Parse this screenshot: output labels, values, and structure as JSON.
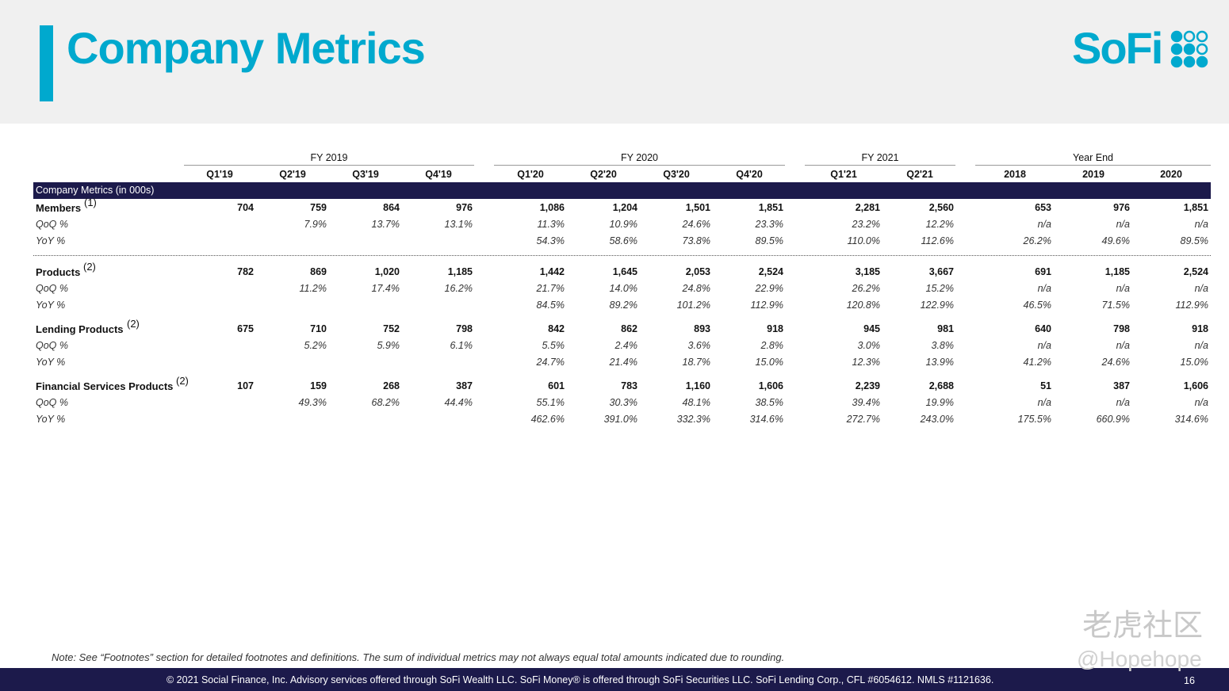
{
  "header": {
    "title": "Company Metrics",
    "logo": "SoFi"
  },
  "table": {
    "groups": [
      "FY 2019",
      "FY 2020",
      "FY 2021",
      "Year End"
    ],
    "columns": [
      "Q1'19",
      "Q2'19",
      "Q3'19",
      "Q4'19",
      "Q1'20",
      "Q2'20",
      "Q3'20",
      "Q4'20",
      "Q1'21",
      "Q2'21",
      "2018",
      "2019",
      "2020"
    ],
    "section": "Company Metrics (in 000s)",
    "metrics": [
      {
        "label": "Members",
        "note": "(1)",
        "values": [
          "704",
          "759",
          "864",
          "976",
          "1,086",
          "1,204",
          "1,501",
          "1,851",
          "2,281",
          "2,560",
          "653",
          "976",
          "1,851"
        ],
        "sub": [
          {
            "label": "QoQ %",
            "values": [
              null,
              "7.9%",
              "13.7%",
              "13.1%",
              "11.3%",
              "10.9%",
              "24.6%",
              "23.3%",
              "23.2%",
              "12.2%",
              "n/a",
              "n/a",
              "n/a"
            ]
          },
          {
            "label": "YoY %",
            "values": [
              null,
              null,
              null,
              null,
              "54.3%",
              "58.6%",
              "73.8%",
              "89.5%",
              "110.0%",
              "112.6%",
              "26.2%",
              "49.6%",
              "89.5%"
            ]
          }
        ]
      },
      {
        "label": "Products",
        "note": "(2)",
        "values": [
          "782",
          "869",
          "1,020",
          "1,185",
          "1,442",
          "1,645",
          "2,053",
          "2,524",
          "3,185",
          "3,667",
          "691",
          "1,185",
          "2,524"
        ],
        "sub": [
          {
            "label": "QoQ %",
            "values": [
              null,
              "11.2%",
              "17.4%",
              "16.2%",
              "21.7%",
              "14.0%",
              "24.8%",
              "22.9%",
              "26.2%",
              "15.2%",
              "n/a",
              "n/a",
              "n/a"
            ]
          },
          {
            "label": "YoY %",
            "values": [
              null,
              null,
              null,
              null,
              "84.5%",
              "89.2%",
              "101.2%",
              "112.9%",
              "120.8%",
              "122.9%",
              "46.5%",
              "71.5%",
              "112.9%"
            ]
          }
        ]
      },
      {
        "label": "Lending Products",
        "note": "(2)",
        "values": [
          "675",
          "710",
          "752",
          "798",
          "842",
          "862",
          "893",
          "918",
          "945",
          "981",
          "640",
          "798",
          "918"
        ],
        "sub": [
          {
            "label": "QoQ %",
            "values": [
              null,
              "5.2%",
              "5.9%",
              "6.1%",
              "5.5%",
              "2.4%",
              "3.6%",
              "2.8%",
              "3.0%",
              "3.8%",
              "n/a",
              "n/a",
              "n/a"
            ]
          },
          {
            "label": "YoY %",
            "values": [
              null,
              null,
              null,
              null,
              "24.7%",
              "21.4%",
              "18.7%",
              "15.0%",
              "12.3%",
              "13.9%",
              "41.2%",
              "24.6%",
              "15.0%"
            ]
          }
        ]
      },
      {
        "label": "Financial Services Products",
        "note": "(2)",
        "values": [
          "107",
          "159",
          "268",
          "387",
          "601",
          "783",
          "1,160",
          "1,606",
          "2,239",
          "2,688",
          "51",
          "387",
          "1,606"
        ],
        "sub": [
          {
            "label": "QoQ %",
            "values": [
              null,
              "49.3%",
              "68.2%",
              "44.4%",
              "55.1%",
              "30.3%",
              "48.1%",
              "38.5%",
              "39.4%",
              "19.9%",
              "n/a",
              "n/a",
              "n/a"
            ]
          },
          {
            "label": "YoY %",
            "values": [
              null,
              null,
              null,
              null,
              "462.6%",
              "391.0%",
              "332.3%",
              "314.6%",
              "272.7%",
              "243.0%",
              "175.5%",
              "660.9%",
              "314.6%"
            ]
          }
        ]
      }
    ]
  },
  "footer": {
    "note": "Note: See “Footnotes” section for detailed footnotes and definitions. The sum of individual metrics may not always equal total amounts indicated due to rounding.",
    "copyright": "© 2021 Social Finance, Inc. Advisory services offered through SoFi Wealth LLC. SoFi Money® is offered through SoFi Securities LLC. SoFi Lending Corp., CFL #6054612. NMLS #1121636.",
    "page": "16"
  },
  "watermark": [
    "老虎社区",
    "@Hopehope"
  ]
}
